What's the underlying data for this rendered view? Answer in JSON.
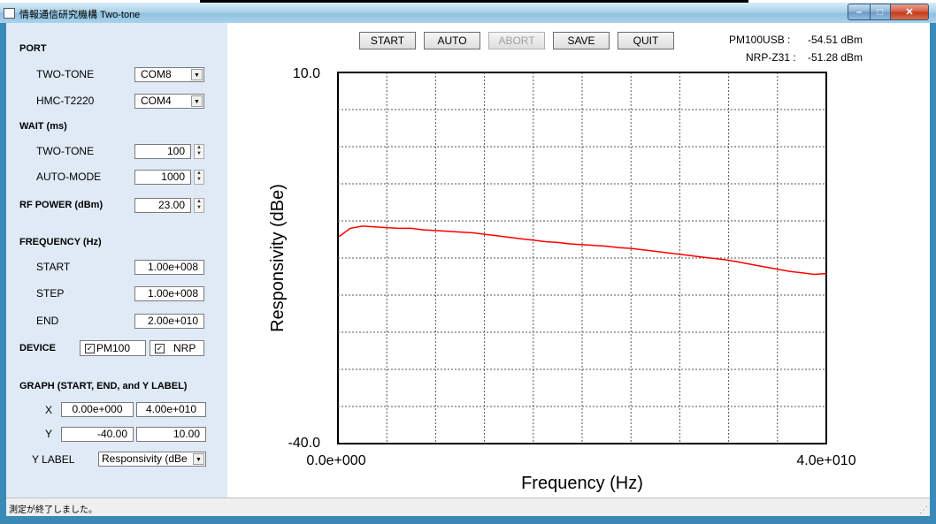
{
  "window": {
    "title": "情報通信研究機構 Two-tone"
  },
  "left_panel": {
    "port": {
      "header": "PORT",
      "two_tone_label": "TWO-TONE",
      "two_tone_value": "COM8",
      "hmc_label": "HMC-T2220",
      "hmc_value": "COM4"
    },
    "wait": {
      "header": "WAIT (ms)",
      "two_tone_label": "TWO-TONE",
      "two_tone_value": "100",
      "auto_label": "AUTO-MODE",
      "auto_value": "1000"
    },
    "rf_power": {
      "header": "RF POWER (dBm)",
      "value": "23.00"
    },
    "frequency": {
      "header": "FREQUENCY (Hz)",
      "start_label": "START",
      "start_value": "1.00e+008",
      "step_label": "STEP",
      "step_value": "1.00e+008",
      "end_label": "END",
      "end_value": "2.00e+010"
    },
    "device": {
      "header": "DEVICE",
      "pm100_label": "PM100",
      "pm100_checked": true,
      "nrp_label": "NRP",
      "nrp_checked": true
    },
    "graph": {
      "header": "GRAPH (START, END, and Y LABEL)",
      "x_label": "X",
      "x_start": "0.00e+000",
      "x_end": "4.00e+010",
      "y_label": "Y",
      "y_start": "-40.00",
      "y_end": "10.00",
      "ylabel_label": "Y LABEL",
      "ylabel_value": "Responsivity (dBe"
    }
  },
  "toolbar": {
    "start": "START",
    "auto": "AUTO",
    "abort": "ABORT",
    "save": "SAVE",
    "quit": "QUIT"
  },
  "readouts": {
    "pm100_label": "PM100USB :",
    "pm100_value": "-54.51 dBm",
    "nrp_label": "NRP-Z31 :",
    "nrp_value": "-51.28 dBm"
  },
  "status": {
    "text": "測定が終了しました。"
  },
  "colors": {
    "series": "#ff0000",
    "panel_bg": "#dfeaf6",
    "window_frame": "#3a8ab8"
  },
  "chart_data": {
    "type": "line",
    "xlabel": "Frequency (Hz)",
    "ylabel": "Responsivity (dBe)",
    "xlim": [
      0,
      40000000000
    ],
    "ylim": [
      -40,
      10
    ],
    "x_tick_labels": [
      "0.0e+000",
      "4.0e+010"
    ],
    "y_tick_labels": [
      "10.0",
      "-40.0"
    ],
    "grid": true,
    "series": [
      {
        "x": [
          100000000,
          1000000000,
          2000000000,
          3000000000,
          4000000000,
          5000000000,
          6000000000,
          7000000000,
          8000000000,
          9000000000,
          10000000000,
          11000000000,
          12000000000,
          13000000000,
          14000000000,
          15000000000,
          16000000000,
          17000000000,
          18000000000,
          19000000000,
          20000000000,
          21000000000,
          22000000000,
          23000000000,
          24000000000,
          25000000000,
          26000000000,
          27000000000,
          28000000000,
          29000000000,
          30000000000,
          31000000000,
          32000000000,
          33000000000,
          34000000000,
          35000000000,
          36000000000,
          37000000000,
          38000000000,
          39000000000,
          40000000000
        ],
        "values": [
          -12.1,
          -11.0,
          -10.7,
          -10.8,
          -10.9,
          -11.0,
          -11.0,
          -11.2,
          -11.3,
          -11.4,
          -11.5,
          -11.6,
          -11.8,
          -12.0,
          -12.2,
          -12.4,
          -12.6,
          -12.8,
          -12.9,
          -13.1,
          -13.2,
          -13.3,
          -13.4,
          -13.6,
          -13.7,
          -13.9,
          -14.1,
          -14.3,
          -14.5,
          -14.7,
          -14.9,
          -15.1,
          -15.3,
          -15.6,
          -15.9,
          -16.2,
          -16.5,
          -16.8,
          -17.0,
          -17.2,
          -17.1
        ]
      }
    ]
  }
}
